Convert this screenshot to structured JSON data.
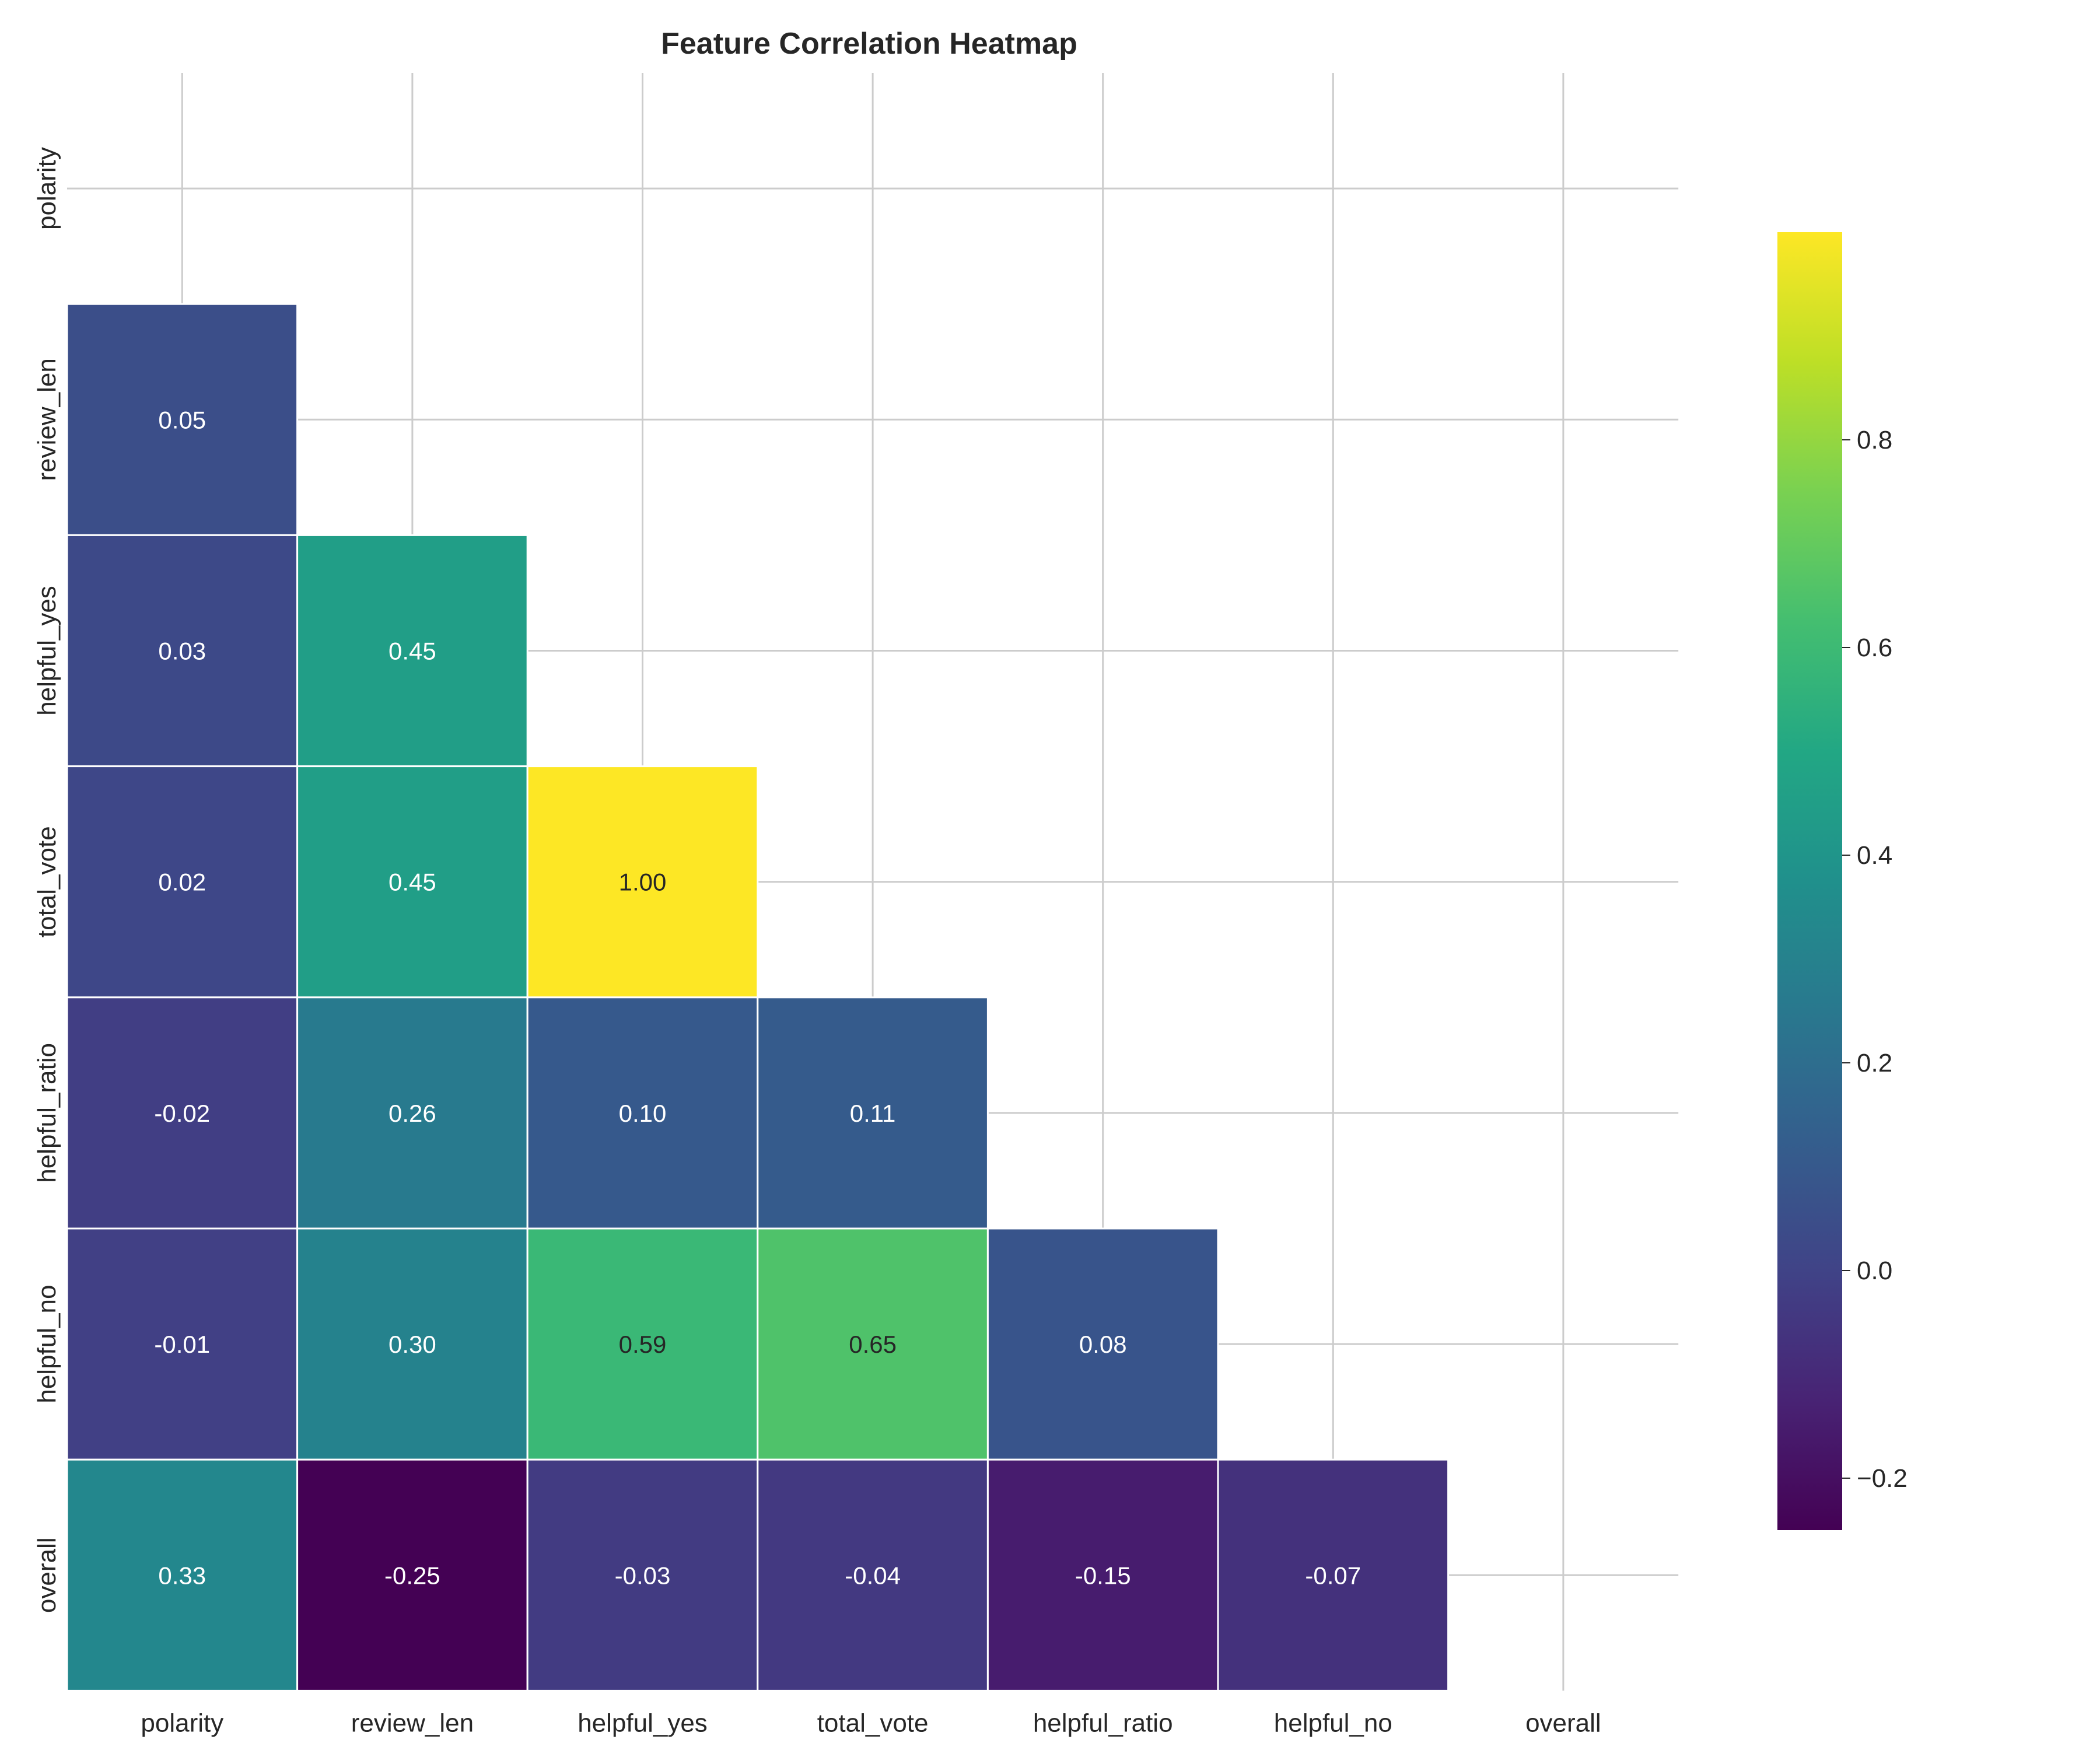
{
  "chart_data": {
    "type": "heatmap",
    "title": "Feature Correlation Heatmap",
    "x_labels": [
      "polarity",
      "review_len",
      "helpful_yes",
      "total_vote",
      "helpful_ratio",
      "helpful_no",
      "overall"
    ],
    "y_labels": [
      "polarity",
      "review_len",
      "helpful_yes",
      "total_vote",
      "helpful_ratio",
      "helpful_no",
      "overall"
    ],
    "mask": "upper-triangle-including-diagonal",
    "cells": [
      {
        "row": 1,
        "col": 0,
        "value": 0.05,
        "label": "0.05"
      },
      {
        "row": 2,
        "col": 0,
        "value": 0.03,
        "label": "0.03"
      },
      {
        "row": 2,
        "col": 1,
        "value": 0.45,
        "label": "0.45"
      },
      {
        "row": 3,
        "col": 0,
        "value": 0.02,
        "label": "0.02"
      },
      {
        "row": 3,
        "col": 1,
        "value": 0.45,
        "label": "0.45"
      },
      {
        "row": 3,
        "col": 2,
        "value": 1.0,
        "label": "1.00"
      },
      {
        "row": 4,
        "col": 0,
        "value": -0.02,
        "label": "-0.02"
      },
      {
        "row": 4,
        "col": 1,
        "value": 0.26,
        "label": "0.26"
      },
      {
        "row": 4,
        "col": 2,
        "value": 0.1,
        "label": "0.10"
      },
      {
        "row": 4,
        "col": 3,
        "value": 0.11,
        "label": "0.11"
      },
      {
        "row": 5,
        "col": 0,
        "value": -0.01,
        "label": "-0.01"
      },
      {
        "row": 5,
        "col": 1,
        "value": 0.3,
        "label": "0.30"
      },
      {
        "row": 5,
        "col": 2,
        "value": 0.59,
        "label": "0.59"
      },
      {
        "row": 5,
        "col": 3,
        "value": 0.65,
        "label": "0.65"
      },
      {
        "row": 5,
        "col": 4,
        "value": 0.08,
        "label": "0.08"
      },
      {
        "row": 6,
        "col": 0,
        "value": 0.33,
        "label": "0.33"
      },
      {
        "row": 6,
        "col": 1,
        "value": -0.25,
        "label": "-0.25"
      },
      {
        "row": 6,
        "col": 2,
        "value": -0.03,
        "label": "-0.03"
      },
      {
        "row": 6,
        "col": 3,
        "value": -0.04,
        "label": "-0.04"
      },
      {
        "row": 6,
        "col": 4,
        "value": -0.15,
        "label": "-0.15"
      },
      {
        "row": 6,
        "col": 5,
        "value": -0.07,
        "label": "-0.07"
      }
    ],
    "colormap": "viridis",
    "vmin": -0.25,
    "vmax": 1.0,
    "colorbar": {
      "ticks": [
        -0.2,
        0.0,
        0.2,
        0.4,
        0.6,
        0.8
      ],
      "tick_labels": [
        "−0.2",
        "0.0",
        "0.2",
        "0.4",
        "0.6",
        "0.8"
      ],
      "placement": "right"
    },
    "grid": true,
    "grid_color": "#cccccc",
    "cell_border_color": "#ffffff",
    "annotation_dark_color": "#262626",
    "annotation_light_color": "#ffffff"
  }
}
